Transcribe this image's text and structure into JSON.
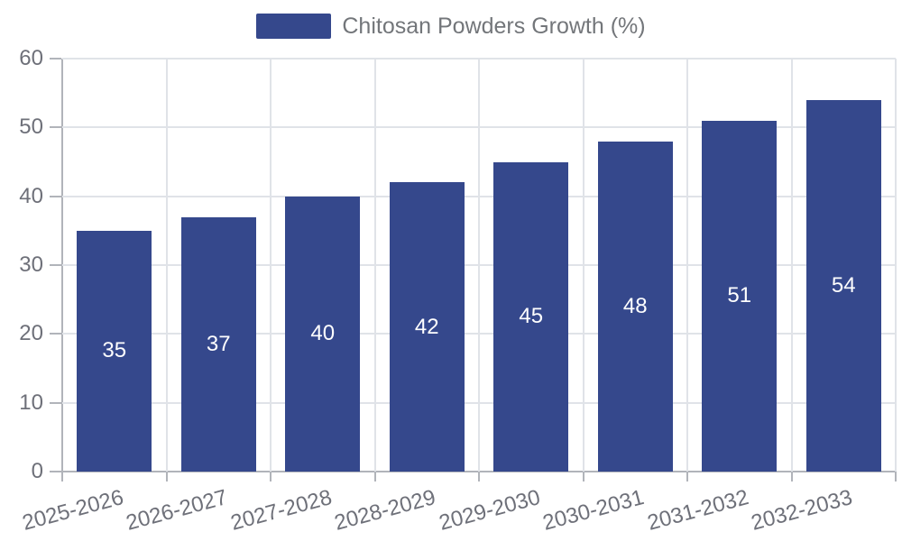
{
  "legend": {
    "label": "Chitosan Powders Growth (%)"
  },
  "chart_data": {
    "type": "bar",
    "title": "",
    "xlabel": "",
    "ylabel": "",
    "categories": [
      "2025-2026",
      "2026-2027",
      "2027-2028",
      "2028-2029",
      "2029-2030",
      "2030-2031",
      "2031-2032",
      "2032-2033"
    ],
    "series": [
      {
        "name": "Chitosan Powders Growth (%)",
        "values": [
          35,
          37,
          40,
          42,
          45,
          48,
          51,
          54
        ]
      }
    ],
    "value_labels_shown": true,
    "value_label_position": "inside-center",
    "ylim": [
      0,
      60
    ],
    "yticks": [
      0,
      10,
      20,
      30,
      40,
      50,
      60
    ],
    "grid": true,
    "legend_position": "top-center",
    "x_tick_label_rotation_deg": -15
  },
  "colors": {
    "bar": "#35488c",
    "value_label": "#ffffff",
    "grid_line": "#e0e3e8",
    "axis_line": "#b1b4ba",
    "tick_text": "#6e7079",
    "legend_text": "#73767a",
    "background": "#ffffff"
  }
}
